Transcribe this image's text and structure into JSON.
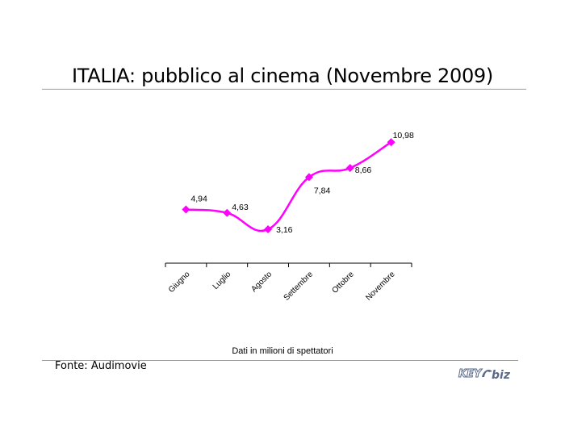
{
  "title": "ITALIA: pubblico al cinema (Novembre 2009)",
  "note": "Dati in milioni di spettatori",
  "source": "Fonte: Audimovie",
  "logo": {
    "text_left": "KEY",
    "text_right": "biz",
    "icon": "key4biz-logo"
  },
  "colors": {
    "series": "#ff00ff",
    "axis": "#000000",
    "rule": "#9a9a9a",
    "logo": "#5a6a8a"
  },
  "chart_data": {
    "type": "line",
    "categories": [
      "Giugno",
      "Luglio",
      "Agosto",
      "Settembre",
      "Ottobre",
      "Novembre"
    ],
    "series": [
      {
        "values": [
          4.94,
          4.63,
          3.16,
          7.84,
          8.66,
          10.98
        ]
      }
    ],
    "data_labels": [
      "4,94",
      "4,63",
      "3,16",
      "7,84",
      "8,66",
      "10,98"
    ],
    "marker": "diamond",
    "smooth": true,
    "y_axis_visible": false,
    "ylim": [
      0,
      12
    ],
    "grid": false,
    "legend": "none",
    "xlabel": "",
    "ylabel": ""
  }
}
